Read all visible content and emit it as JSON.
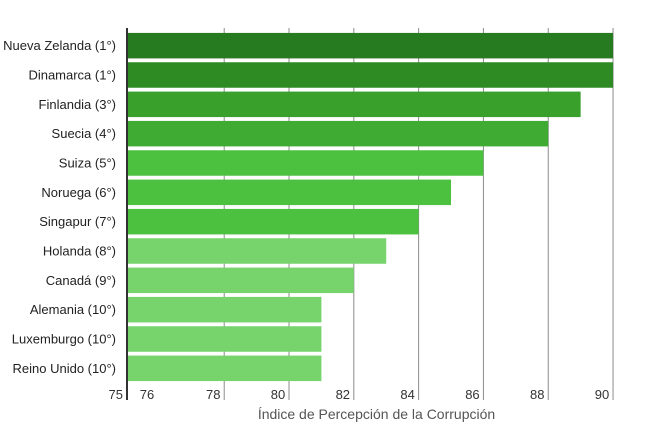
{
  "chart_data": {
    "type": "bar",
    "orientation": "horizontal",
    "categories": [
      "Nueva Zelanda (1°)",
      "Dinamarca (1°)",
      "Finlandia (3°)",
      "Suecia (4°)",
      "Suiza (5°)",
      "Noruega (6°)",
      "Singapur (7°)",
      "Holanda (8°)",
      "Canadá (9°)",
      "Alemania (10°)",
      "Luxemburgo (10°)",
      "Reino Unido (10°)"
    ],
    "values": [
      90,
      90,
      89,
      88,
      86,
      85,
      84,
      83,
      82,
      81,
      81,
      81
    ],
    "bar_colors": [
      "#267a1f",
      "#2e8b24",
      "#38a02b",
      "#40ab33",
      "#4cc13f",
      "#4cc13f",
      "#4cc13f",
      "#77d46c",
      "#77d46c",
      "#77d46c",
      "#77d46c",
      "#77d46c"
    ],
    "xlabel": "Índice de Percepción de la Corrupción",
    "xlim": [
      75,
      90.4
    ],
    "x_ticks": [
      75,
      76,
      78,
      80,
      82,
      84,
      86,
      88,
      90
    ],
    "gridlines": [
      78,
      80,
      82,
      84,
      86,
      88,
      90
    ],
    "grid": true,
    "legend": "none"
  }
}
